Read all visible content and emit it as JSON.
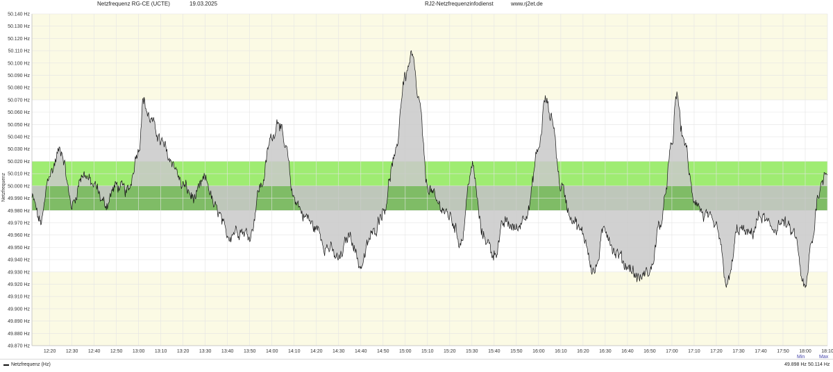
{
  "header": {
    "title": "Netzfrequenz RG-CE (UCTE)",
    "date": "19.03.2025",
    "source": "RJ2-Netzfrequenzinfodienst",
    "url": "www.rj2et.de"
  },
  "legend": {
    "series_name": "Netzfrequenz (Hz)"
  },
  "stats": {
    "min_label": "Min",
    "max_label": "Max",
    "min_value": "49.898 Hz",
    "max_value": "50.114 Hz"
  },
  "colors": {
    "band_outer": "#fbfae4",
    "band_green": "#9fec72",
    "band_dark": "#7fbc66",
    "line": "#111111",
    "fill": "#c9c9c9",
    "grid": "#e4e4e4"
  },
  "chart_data": {
    "type": "area",
    "title": "Netzfrequenz RG-CE (UCTE)",
    "ylabel": "Netzfrequenz",
    "ylim": [
      49.87,
      50.14
    ],
    "xlim": [
      "12:12",
      "18:10"
    ],
    "baseline": 50.0,
    "y_ticks": [
      "50.140 Hz",
      "50.130 Hz",
      "50.120 Hz",
      "50.110 Hz",
      "50.100 Hz",
      "50.090 Hz",
      "50.080 Hz",
      "50.070 Hz",
      "50.060 Hz",
      "50.050 Hz",
      "50.040 Hz",
      "50.030 Hz",
      "50.020 Hz",
      "50.010 Hz",
      "50.000 Hz",
      "49.990 Hz",
      "49.980 Hz",
      "49.970 Hz",
      "49.960 Hz",
      "49.950 Hz",
      "49.940 Hz",
      "49.930 Hz",
      "49.920 Hz",
      "49.910 Hz",
      "49.900 Hz",
      "49.890 Hz",
      "49.880 Hz",
      "49.870 Hz"
    ],
    "x_ticks": [
      "12:20",
      "12:30",
      "12:40",
      "12:50",
      "13:00",
      "13:10",
      "13:20",
      "13:30",
      "13:40",
      "13:50",
      "14:00",
      "14:10",
      "14:20",
      "14:30",
      "14:40",
      "14:50",
      "15:00",
      "15:10",
      "15:20",
      "15:30",
      "15:40",
      "15:50",
      "16:00",
      "16:10",
      "16:20",
      "16:30",
      "16:40",
      "16:50",
      "17:00",
      "17:10",
      "17:20",
      "17:30",
      "17:40",
      "17:50",
      "18:00",
      "18:10"
    ],
    "bands": [
      {
        "from": 50.07,
        "to": 50.14,
        "color": "#fbfae4"
      },
      {
        "from": 49.87,
        "to": 49.93,
        "color": "#fbfae4"
      },
      {
        "from": 49.98,
        "to": 50.02,
        "color": "#9fec72"
      },
      {
        "from": 49.98,
        "to": 50.0,
        "color": "#7fbc66"
      }
    ],
    "series": [
      {
        "name": "Netzfrequenz (Hz)",
        "x": [
          "12:12",
          "12:16",
          "12:20",
          "12:25",
          "12:30",
          "12:35",
          "12:40",
          "12:45",
          "12:50",
          "12:55",
          "13:00",
          "13:02",
          "13:05",
          "13:08",
          "13:10",
          "13:15",
          "13:20",
          "13:25",
          "13:30",
          "13:35",
          "13:40",
          "13:45",
          "13:50",
          "13:55",
          "14:00",
          "14:03",
          "14:06",
          "14:10",
          "14:15",
          "14:20",
          "14:25",
          "14:30",
          "14:35",
          "14:40",
          "14:45",
          "14:50",
          "14:55",
          "15:00",
          "15:03",
          "15:06",
          "15:10",
          "15:15",
          "15:20",
          "15:25",
          "15:30",
          "15:35",
          "15:40",
          "15:45",
          "15:50",
          "15:55",
          "16:00",
          "16:03",
          "16:06",
          "16:10",
          "16:15",
          "16:20",
          "16:25",
          "16:30",
          "16:35",
          "16:40",
          "16:45",
          "16:50",
          "16:55",
          "17:00",
          "17:02",
          "17:05",
          "17:10",
          "17:15",
          "17:20",
          "17:25",
          "17:30",
          "17:35",
          "17:40",
          "17:45",
          "17:50",
          "17:55",
          "18:00",
          "18:03",
          "18:06",
          "18:10"
        ],
        "y": [
          49.99,
          49.97,
          50.01,
          50.03,
          49.985,
          50.01,
          50.0,
          49.985,
          50.0,
          49.995,
          50.03,
          50.07,
          50.055,
          50.045,
          50.035,
          50.02,
          50.0,
          49.99,
          50.005,
          49.98,
          49.96,
          49.965,
          49.96,
          50.0,
          50.04,
          50.055,
          50.03,
          49.99,
          49.975,
          49.965,
          49.95,
          49.94,
          49.96,
          49.935,
          49.96,
          49.98,
          50.02,
          50.09,
          50.105,
          50.07,
          50.0,
          49.985,
          49.975,
          49.955,
          50.015,
          49.96,
          49.945,
          49.97,
          49.965,
          49.98,
          50.03,
          50.07,
          50.055,
          50.0,
          49.975,
          49.96,
          49.93,
          49.965,
          49.945,
          49.935,
          49.925,
          49.93,
          49.97,
          50.03,
          50.075,
          50.04,
          49.99,
          49.975,
          49.965,
          49.92,
          49.965,
          49.96,
          49.975,
          49.965,
          49.97,
          49.96,
          49.915,
          49.955,
          49.995,
          50.015
        ]
      }
    ]
  }
}
